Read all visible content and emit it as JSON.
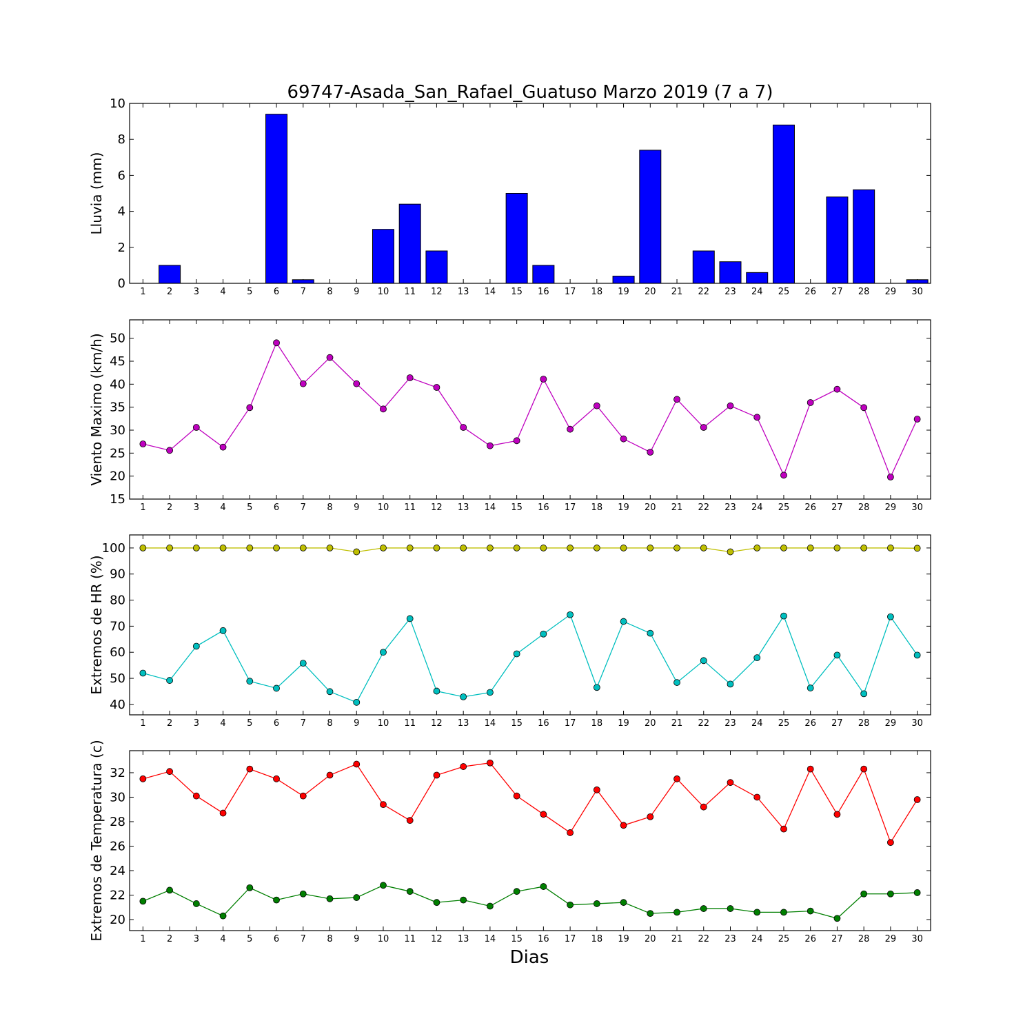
{
  "title": "69747-Asada_San_Rafael_Guatuso Marzo 2019  (7 a 7)",
  "xlabel": "Dias",
  "chart_data": [
    {
      "type": "bar",
      "ylabel": "Lluvia (mm)",
      "ylim": [
        0,
        10
      ],
      "yticks": [
        0,
        2,
        4,
        6,
        8,
        10
      ],
      "x": [
        1,
        2,
        3,
        4,
        5,
        6,
        7,
        8,
        9,
        10,
        11,
        12,
        13,
        14,
        15,
        16,
        17,
        18,
        19,
        20,
        21,
        22,
        23,
        24,
        25,
        26,
        27,
        28,
        29,
        30
      ],
      "series": [
        {
          "color": "#0000ff",
          "values": [
            0,
            1.0,
            0,
            0,
            0,
            9.4,
            0.2,
            0,
            0,
            3.0,
            4.4,
            1.8,
            0,
            0,
            5.0,
            1.0,
            0,
            0,
            0.4,
            7.4,
            0,
            1.8,
            1.2,
            0.6,
            8.8,
            0,
            4.8,
            5.2,
            0,
            0.2
          ]
        }
      ]
    },
    {
      "type": "line",
      "ylabel": "Viento Maximo (km/h)",
      "ylim": [
        15,
        54
      ],
      "yticks": [
        15,
        20,
        25,
        30,
        35,
        40,
        45,
        50
      ],
      "x": [
        1,
        2,
        3,
        4,
        5,
        6,
        7,
        8,
        9,
        10,
        11,
        12,
        13,
        14,
        15,
        16,
        17,
        18,
        19,
        20,
        21,
        22,
        23,
        24,
        25,
        26,
        27,
        28,
        29,
        30
      ],
      "series": [
        {
          "color": "#bf00bf",
          "values": [
            27.0,
            25.6,
            30.6,
            26.3,
            34.9,
            49.0,
            40.1,
            45.8,
            40.1,
            34.6,
            41.4,
            39.3,
            30.6,
            26.6,
            27.7,
            41.1,
            30.2,
            35.3,
            28.1,
            25.2,
            36.7,
            30.6,
            35.3,
            32.8,
            20.2,
            36.0,
            38.9,
            34.9,
            19.8,
            32.4
          ]
        }
      ]
    },
    {
      "type": "line",
      "ylabel": "Extremos de HR (%)",
      "ylim": [
        36,
        105
      ],
      "yticks": [
        40,
        50,
        60,
        70,
        80,
        90,
        100
      ],
      "x": [
        1,
        2,
        3,
        4,
        5,
        6,
        7,
        8,
        9,
        10,
        11,
        12,
        13,
        14,
        15,
        16,
        17,
        18,
        19,
        20,
        21,
        22,
        23,
        24,
        25,
        26,
        27,
        28,
        29,
        30
      ],
      "series": [
        {
          "color": "#bfbf00",
          "values": [
            100,
            100,
            100,
            100,
            100,
            100,
            100,
            100,
            98.5,
            100,
            100,
            100,
            100,
            100,
            100,
            100,
            100,
            100,
            100,
            100,
            100,
            100,
            98.5,
            100,
            100,
            100,
            100,
            100,
            100,
            99.9
          ]
        },
        {
          "color": "#00bfbf",
          "values": [
            52,
            49.2,
            62.3,
            68.3,
            48.9,
            46.2,
            55.8,
            44.9,
            40.8,
            60,
            72.9,
            45.1,
            42.9,
            44.6,
            59.4,
            67,
            74.4,
            46.5,
            71.8,
            67.3,
            48.4,
            56.8,
            47.8,
            57.9,
            73.9,
            46.3,
            58.9,
            44.1,
            73.6,
            58.9
          ]
        }
      ]
    },
    {
      "type": "line",
      "ylabel": "Extremos de Temperatura (c)",
      "ylim": [
        19.1,
        33.8
      ],
      "yticks": [
        20,
        22,
        24,
        26,
        28,
        30,
        32
      ],
      "x": [
        1,
        2,
        3,
        4,
        5,
        6,
        7,
        8,
        9,
        10,
        11,
        12,
        13,
        14,
        15,
        16,
        17,
        18,
        19,
        20,
        21,
        22,
        23,
        24,
        25,
        26,
        27,
        28,
        29,
        30
      ],
      "series": [
        {
          "color": "#ff0000",
          "values": [
            31.5,
            32.1,
            30.1,
            28.7,
            32.3,
            31.5,
            30.1,
            31.8,
            32.7,
            29.4,
            28.1,
            31.8,
            32.5,
            32.8,
            30.1,
            28.6,
            27.1,
            30.6,
            27.7,
            28.4,
            31.5,
            29.2,
            31.2,
            30.0,
            27.4,
            32.3,
            28.6,
            32.3,
            26.3,
            29.8
          ]
        },
        {
          "color": "#007f00",
          "values": [
            21.5,
            22.4,
            21.3,
            20.3,
            22.6,
            21.6,
            22.1,
            21.7,
            21.8,
            22.8,
            22.3,
            21.4,
            21.6,
            21.1,
            22.3,
            22.7,
            21.2,
            21.3,
            21.4,
            20.5,
            20.6,
            20.9,
            20.9,
            20.6,
            20.6,
            20.7,
            20.1,
            22.1,
            22.1,
            22.2
          ]
        }
      ]
    }
  ]
}
